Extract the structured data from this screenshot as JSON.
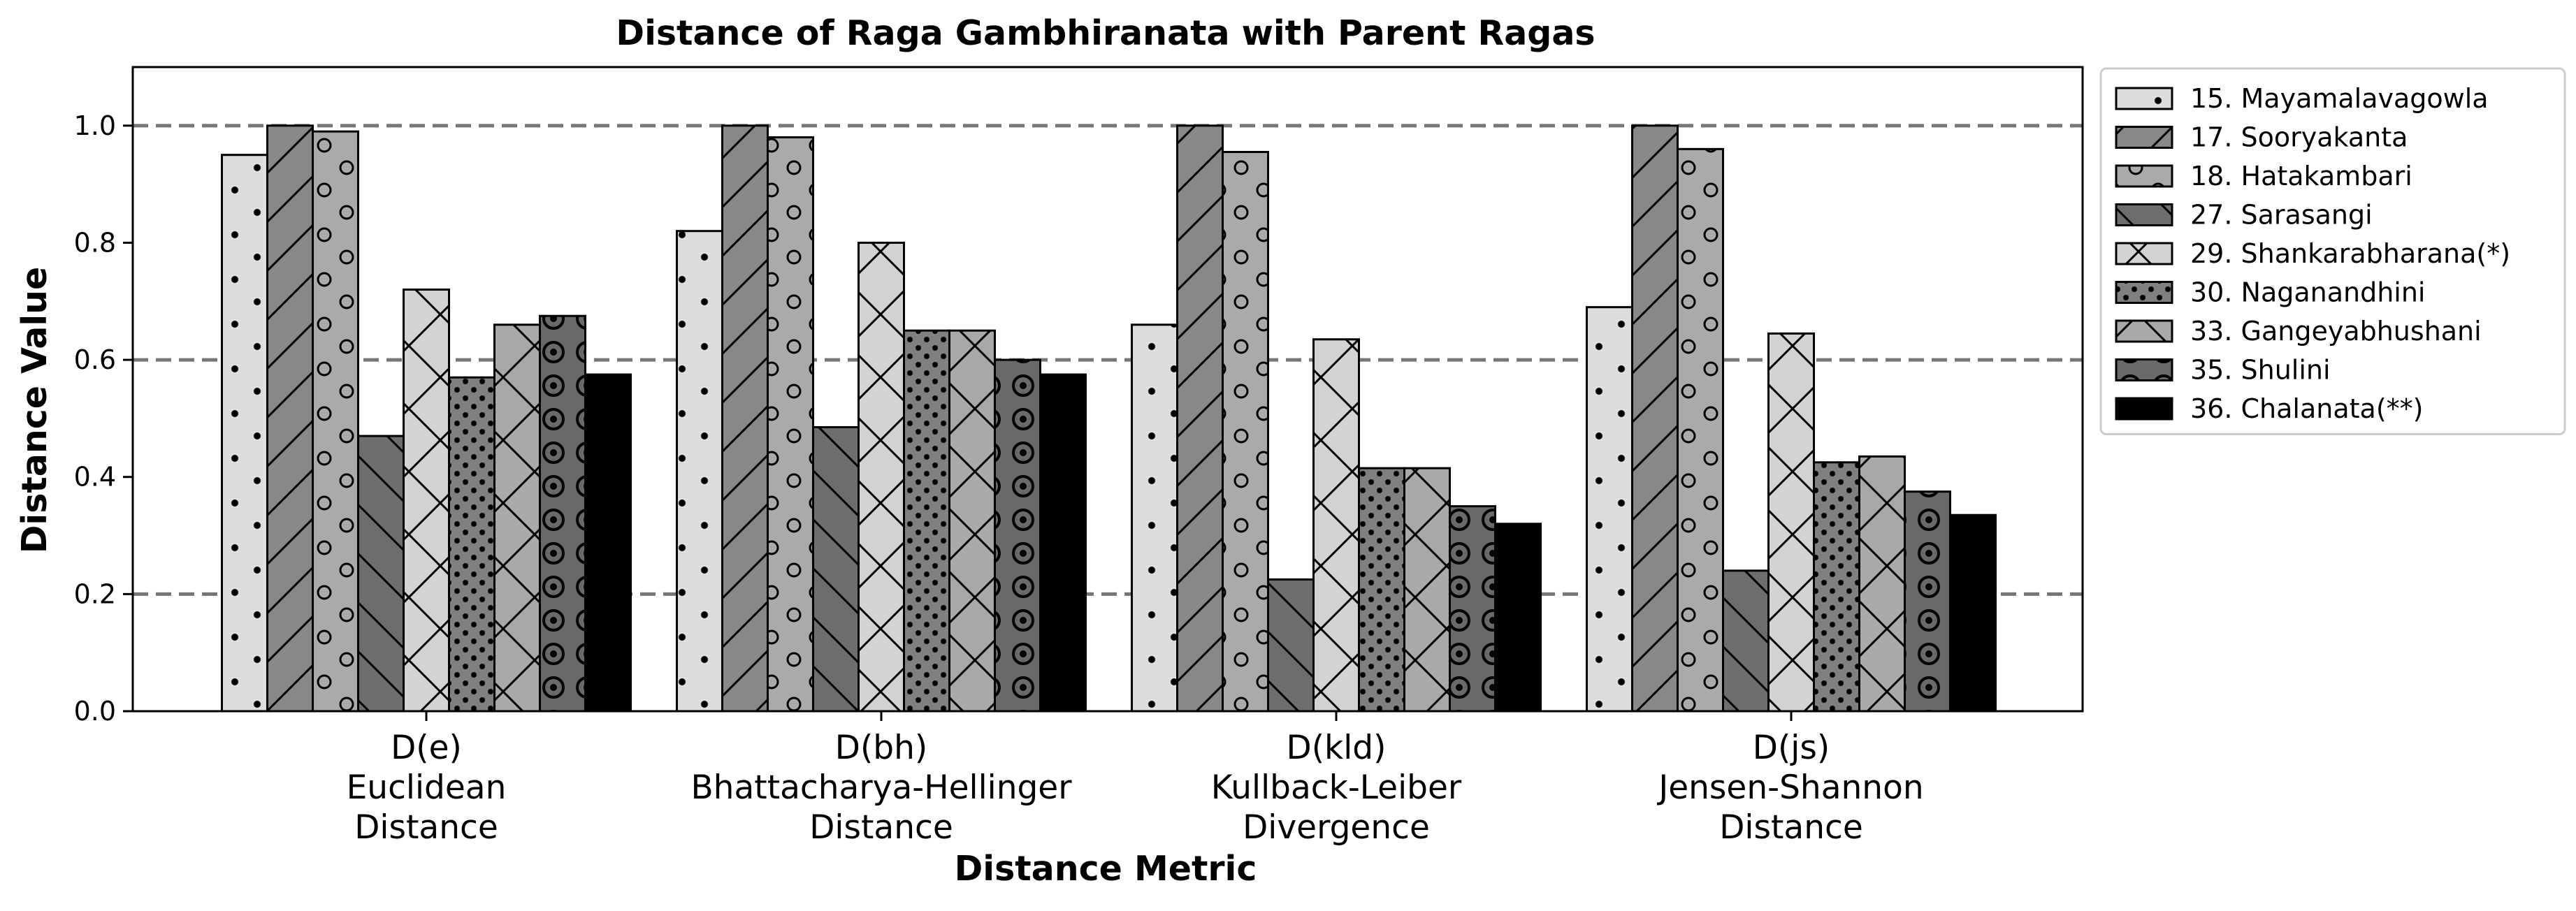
{
  "chart_data": {
    "type": "bar",
    "title": "Distance of Raga Gambhiranata with Parent Ragas",
    "xlabel": "Distance Metric",
    "ylabel": "Distance Value",
    "ylim": [
      0,
      1.1
    ],
    "yticks": [
      "0.0",
      "0.2",
      "0.4",
      "0.6",
      "0.8",
      "1.0"
    ],
    "reference_lines": [
      0.2,
      0.6,
      1.0
    ],
    "grid": false,
    "legend_position": "outside-right",
    "categories": [
      [
        "D(e)",
        "Euclidean",
        "Distance"
      ],
      [
        "D(bh)",
        "Bhattacharya-Hellinger",
        "Distance"
      ],
      [
        "D(kld)",
        "Kullback-Leiber",
        "Divergence"
      ],
      [
        "D(js)",
        "Jensen-Shannon",
        "Distance"
      ]
    ],
    "series": [
      {
        "name": "15. Mayamalavagowla",
        "values": [
          0.95,
          0.82,
          0.66,
          0.69
        ],
        "color": "#dddddd",
        "hatch": "dots-large"
      },
      {
        "name": "17. Sooryakanta",
        "values": [
          1.0,
          1.0,
          1.0,
          1.0
        ],
        "color": "#888888",
        "hatch": "diagonal"
      },
      {
        "name": "18. Hatakambari",
        "values": [
          0.99,
          0.98,
          0.955,
          0.96
        ],
        "color": "#aaaaaa",
        "hatch": "rings"
      },
      {
        "name": "27. Sarasangi",
        "values": [
          0.47,
          0.485,
          0.225,
          0.24
        ],
        "color": "#6e6e6e",
        "hatch": "backslash"
      },
      {
        "name": "29. Shankarabharana(*)",
        "values": [
          0.72,
          0.8,
          0.635,
          0.645
        ],
        "color": "#d3d3d3",
        "hatch": "cross"
      },
      {
        "name": "30. Naganandhini",
        "values": [
          0.57,
          0.65,
          0.415,
          0.425
        ],
        "color": "#808080",
        "hatch": "dots-small"
      },
      {
        "name": "33. Gangeyabhushani",
        "values": [
          0.66,
          0.65,
          0.415,
          0.435
        ],
        "color": "#a9a9a9",
        "hatch": "cross"
      },
      {
        "name": "35. Shulini",
        "values": [
          0.675,
          0.6,
          0.35,
          0.375
        ],
        "color": "#696969",
        "hatch": "bullseye"
      },
      {
        "name": "36. Chalanata(**)",
        "values": [
          0.575,
          0.575,
          0.32,
          0.335
        ],
        "color": "#000000",
        "hatch": "none"
      }
    ]
  }
}
